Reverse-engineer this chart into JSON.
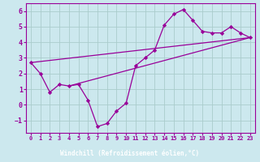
{
  "xlabel": "Windchill (Refroidissement éolien,°C)",
  "bg_color": "#cce8ee",
  "line_color": "#990099",
  "label_bar_color": "#7700aa",
  "grid_color": "#aacccc",
  "xlim": [
    -0.5,
    23.5
  ],
  "ylim": [
    -1.8,
    6.5
  ],
  "xticks": [
    0,
    1,
    2,
    3,
    4,
    5,
    6,
    7,
    8,
    9,
    10,
    11,
    12,
    13,
    14,
    15,
    16,
    17,
    18,
    19,
    20,
    21,
    22,
    23
  ],
  "yticks": [
    -1,
    0,
    1,
    2,
    3,
    4,
    5,
    6
  ],
  "curve1_x": [
    0,
    1,
    2,
    3,
    4,
    5,
    6,
    7,
    8,
    9,
    10,
    11,
    12,
    13,
    14,
    15,
    16,
    17,
    18,
    19,
    20,
    21,
    22,
    23
  ],
  "curve1_y": [
    2.7,
    2.0,
    0.8,
    1.3,
    1.2,
    1.3,
    0.3,
    -1.4,
    -1.2,
    -0.4,
    0.1,
    2.5,
    3.0,
    3.5,
    5.1,
    5.8,
    6.1,
    5.4,
    4.7,
    4.6,
    4.6,
    5.0,
    4.6,
    4.3
  ],
  "line1_x": [
    0,
    23
  ],
  "line1_y": [
    2.7,
    4.3
  ],
  "line2_x": [
    4,
    23
  ],
  "line2_y": [
    1.2,
    4.3
  ],
  "xlabel_fontsize": 5.5,
  "tick_fontsize_x": 5.0,
  "tick_fontsize_y": 6.0
}
